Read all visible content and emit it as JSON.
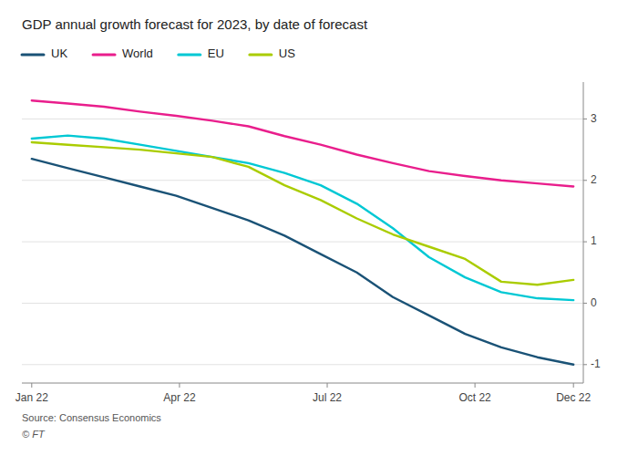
{
  "chart_data": {
    "type": "line",
    "title": "GDP annual growth forecast for 2023, by date of forecast",
    "annotations": [
      "Source: Consensus Economics",
      "© FT"
    ],
    "x": [
      0,
      0.7333333333333333,
      1.4666666666666666,
      2.2,
      2.933333333333333,
      3.6666666666666665,
      4.4,
      5.133333333333333,
      5.866666666666666,
      6.6,
      7.333333333333333,
      8.066666666666666,
      8.8,
      9.533333333333333,
      10.266666666666666,
      11
    ],
    "series": [
      {
        "name": "UK",
        "color": "#1a5276",
        "values": [
          2.35,
          2.2,
          2.05,
          1.9,
          1.75,
          1.55,
          1.35,
          1.1,
          0.8,
          0.5,
          0.1,
          -0.2,
          -0.5,
          -0.72,
          -0.88,
          -1.0
        ]
      },
      {
        "name": "World",
        "color": "#e91e8c",
        "values": [
          3.3,
          3.25,
          3.2,
          3.12,
          3.05,
          2.97,
          2.88,
          2.72,
          2.58,
          2.42,
          2.28,
          2.15,
          2.07,
          2.0,
          1.95,
          1.9
        ]
      },
      {
        "name": "EU",
        "color": "#00c8d4",
        "values": [
          2.68,
          2.73,
          2.68,
          2.58,
          2.48,
          2.38,
          2.28,
          2.12,
          1.92,
          1.62,
          1.22,
          0.75,
          0.42,
          0.18,
          0.08,
          0.05
        ]
      },
      {
        "name": "US",
        "color": "#aacc00",
        "values": [
          2.62,
          2.58,
          2.54,
          2.5,
          2.44,
          2.38,
          2.22,
          1.92,
          1.68,
          1.38,
          1.12,
          0.92,
          0.72,
          0.35,
          0.3,
          0.38
        ]
      }
    ],
    "xlim": [
      -0.2,
      11.2
    ],
    "xticks": [
      {
        "value": 0,
        "label": "Jan 22"
      },
      {
        "value": 3,
        "label": "Apr 22"
      },
      {
        "value": 6,
        "label": "Jul 22"
      },
      {
        "value": 9,
        "label": "Oct 22"
      },
      {
        "value": 11,
        "label": "Dec 22"
      }
    ],
    "ylim": [
      -1.3,
      3.6
    ],
    "yticks": [
      -1,
      0,
      1,
      2,
      3
    ],
    "grid": true,
    "legend": "top"
  }
}
